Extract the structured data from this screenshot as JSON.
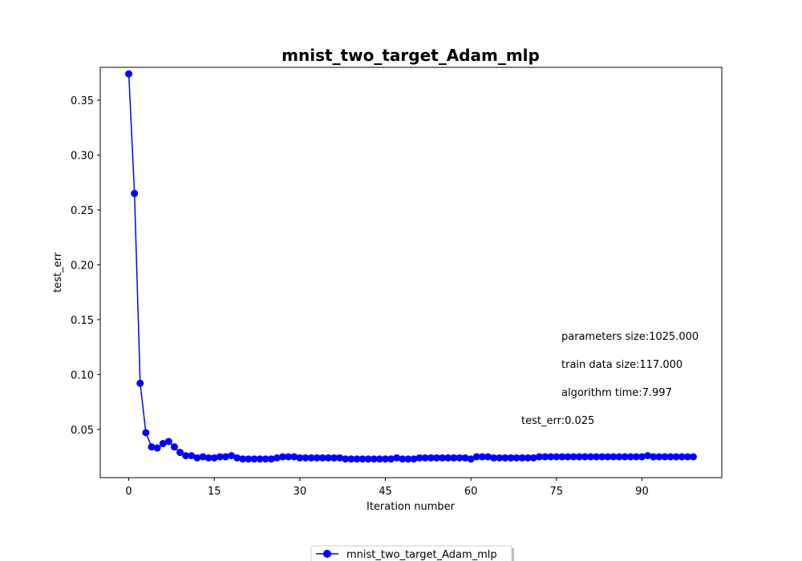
{
  "chart_data": {
    "type": "line",
    "title": "mnist_two_target_Adam_mlp",
    "xlabel": "Iteration number",
    "ylabel": "test_err",
    "xlim": [
      -5,
      104
    ],
    "ylim": [
      0.006,
      0.38
    ],
    "xticks": [
      0,
      15,
      30,
      45,
      60,
      75,
      90
    ],
    "yticks": [
      0.05,
      0.1,
      0.15,
      0.2,
      0.25,
      0.3,
      0.35
    ],
    "ytick_labels": [
      "0.05",
      "0.10",
      "0.15",
      "0.20",
      "0.25",
      "0.30",
      "0.35"
    ],
    "grid": false,
    "legend_position": "bottom-center",
    "series": [
      {
        "name": "mnist_two_target_Adam_mlp",
        "color": "#0000ff",
        "marker": "circle",
        "x": [
          0,
          1,
          2,
          3,
          4,
          5,
          6,
          7,
          8,
          9,
          10,
          11,
          12,
          13,
          14,
          15,
          16,
          17,
          18,
          19,
          20,
          21,
          22,
          23,
          24,
          25,
          26,
          27,
          28,
          29,
          30,
          31,
          32,
          33,
          34,
          35,
          36,
          37,
          38,
          39,
          40,
          41,
          42,
          43,
          44,
          45,
          46,
          47,
          48,
          49,
          50,
          51,
          52,
          53,
          54,
          55,
          56,
          57,
          58,
          59,
          60,
          61,
          62,
          63,
          64,
          65,
          66,
          67,
          68,
          69,
          70,
          71,
          72,
          73,
          74,
          75,
          76,
          77,
          78,
          79,
          80,
          81,
          82,
          83,
          84,
          85,
          86,
          87,
          88,
          89,
          90,
          91,
          92,
          93,
          94,
          95,
          96,
          97,
          98,
          99
        ],
        "values": [
          0.374,
          0.265,
          0.092,
          0.047,
          0.034,
          0.033,
          0.037,
          0.039,
          0.034,
          0.029,
          0.026,
          0.026,
          0.024,
          0.025,
          0.024,
          0.024,
          0.025,
          0.025,
          0.026,
          0.024,
          0.023,
          0.023,
          0.023,
          0.023,
          0.023,
          0.023,
          0.024,
          0.025,
          0.025,
          0.025,
          0.024,
          0.024,
          0.024,
          0.024,
          0.024,
          0.024,
          0.024,
          0.024,
          0.023,
          0.023,
          0.023,
          0.023,
          0.023,
          0.023,
          0.023,
          0.023,
          0.023,
          0.024,
          0.023,
          0.023,
          0.023,
          0.024,
          0.024,
          0.024,
          0.024,
          0.024,
          0.024,
          0.024,
          0.024,
          0.024,
          0.023,
          0.025,
          0.025,
          0.025,
          0.024,
          0.024,
          0.024,
          0.024,
          0.024,
          0.024,
          0.024,
          0.024,
          0.025,
          0.025,
          0.025,
          0.025,
          0.025,
          0.025,
          0.025,
          0.025,
          0.025,
          0.025,
          0.025,
          0.025,
          0.025,
          0.025,
          0.025,
          0.025,
          0.025,
          0.025,
          0.025,
          0.026,
          0.025,
          0.025,
          0.025,
          0.025,
          0.025,
          0.025,
          0.025,
          0.025
        ]
      }
    ],
    "annotations": [
      {
        "text": "parameters size:1025.000"
      },
      {
        "text": "train data size:117.000"
      },
      {
        "text": "algorithm time:7.997"
      },
      {
        "text": "test_err:0.025"
      }
    ]
  }
}
